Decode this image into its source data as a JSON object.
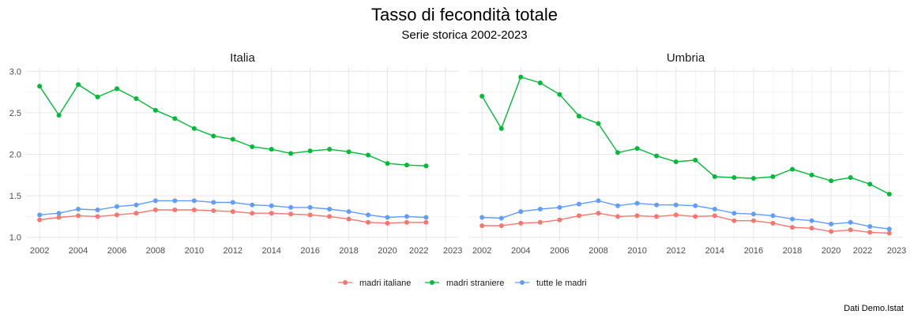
{
  "title": "Tasso di fecondità totale",
  "subtitle": "Serie storica 2002-2023",
  "caption": "Dati Demo.Istat",
  "colors": {
    "madri italiane": "#F8766D",
    "madri straniere": "#00BA38",
    "tutte le madri": "#619CFF",
    "grid_major": "#e6e6e6",
    "grid_minor": "#f2f2f2"
  },
  "legend": {
    "position": "bottom",
    "items": [
      "madri italiane",
      "madri straniere",
      "tutte le madri"
    ]
  },
  "chart_data": [
    {
      "type": "line",
      "panel": "Italia",
      "grid": true,
      "xlim": [
        2001.3,
        2023.7
      ],
      "ylim": [
        0.95,
        3.05
      ],
      "x_ticks": [
        "2002",
        "2004",
        "2006",
        "2008",
        "2010",
        "2012",
        "2014",
        "2016",
        "2018",
        "2020",
        "2022",
        "2023"
      ],
      "y_ticks": [
        "1.0",
        "1.5",
        "2.0",
        "2.5",
        "3.0"
      ],
      "x": [
        2002,
        2003,
        2004,
        2005,
        2006,
        2007,
        2008,
        2009,
        2010,
        2011,
        2012,
        2013,
        2014,
        2015,
        2016,
        2017,
        2018,
        2019,
        2020,
        2021,
        2022
      ],
      "series": [
        {
          "name": "madri italiane",
          "values": [
            1.21,
            1.24,
            1.26,
            1.25,
            1.27,
            1.29,
            1.33,
            1.33,
            1.33,
            1.32,
            1.31,
            1.29,
            1.29,
            1.28,
            1.27,
            1.25,
            1.22,
            1.18,
            1.17,
            1.18,
            1.18
          ]
        },
        {
          "name": "madri straniere",
          "values": [
            2.82,
            2.47,
            2.84,
            2.69,
            2.79,
            2.67,
            2.53,
            2.43,
            2.31,
            2.22,
            2.18,
            2.09,
            2.06,
            2.01,
            2.04,
            2.06,
            2.03,
            1.99,
            1.89,
            1.87,
            1.86
          ]
        },
        {
          "name": "tutte le madri",
          "values": [
            1.27,
            1.29,
            1.34,
            1.33,
            1.37,
            1.39,
            1.44,
            1.44,
            1.44,
            1.42,
            1.42,
            1.39,
            1.38,
            1.36,
            1.36,
            1.34,
            1.31,
            1.27,
            1.24,
            1.25,
            1.24
          ]
        }
      ]
    },
    {
      "type": "line",
      "panel": "Umbria",
      "grid": true,
      "xlim": [
        2001.3,
        2023.7
      ],
      "ylim": [
        0.95,
        3.05
      ],
      "x_ticks": [
        "2002",
        "2004",
        "2006",
        "2008",
        "2010",
        "2012",
        "2014",
        "2016",
        "2018",
        "2020",
        "2022",
        "2023"
      ],
      "y_ticks": [],
      "x": [
        2002,
        2003,
        2004,
        2005,
        2006,
        2007,
        2008,
        2009,
        2010,
        2011,
        2012,
        2013,
        2014,
        2015,
        2016,
        2017,
        2018,
        2019,
        2020,
        2021,
        2022,
        2023
      ],
      "series": [
        {
          "name": "madri italiane",
          "values": [
            1.14,
            1.14,
            1.17,
            1.18,
            1.21,
            1.26,
            1.29,
            1.25,
            1.26,
            1.25,
            1.27,
            1.25,
            1.26,
            1.2,
            1.2,
            1.17,
            1.12,
            1.11,
            1.07,
            1.09,
            1.06,
            1.05
          ]
        },
        {
          "name": "madri straniere",
          "values": [
            2.7,
            2.31,
            2.93,
            2.86,
            2.72,
            2.46,
            2.37,
            2.02,
            2.07,
            1.98,
            1.91,
            1.93,
            1.73,
            1.72,
            1.71,
            1.73,
            1.82,
            1.75,
            1.68,
            1.72,
            1.64,
            1.52
          ]
        },
        {
          "name": "tutte le madri",
          "values": [
            1.24,
            1.23,
            1.31,
            1.34,
            1.36,
            1.4,
            1.44,
            1.38,
            1.41,
            1.39,
            1.39,
            1.38,
            1.34,
            1.29,
            1.28,
            1.26,
            1.22,
            1.2,
            1.16,
            1.18,
            1.13,
            1.1
          ]
        }
      ]
    }
  ]
}
